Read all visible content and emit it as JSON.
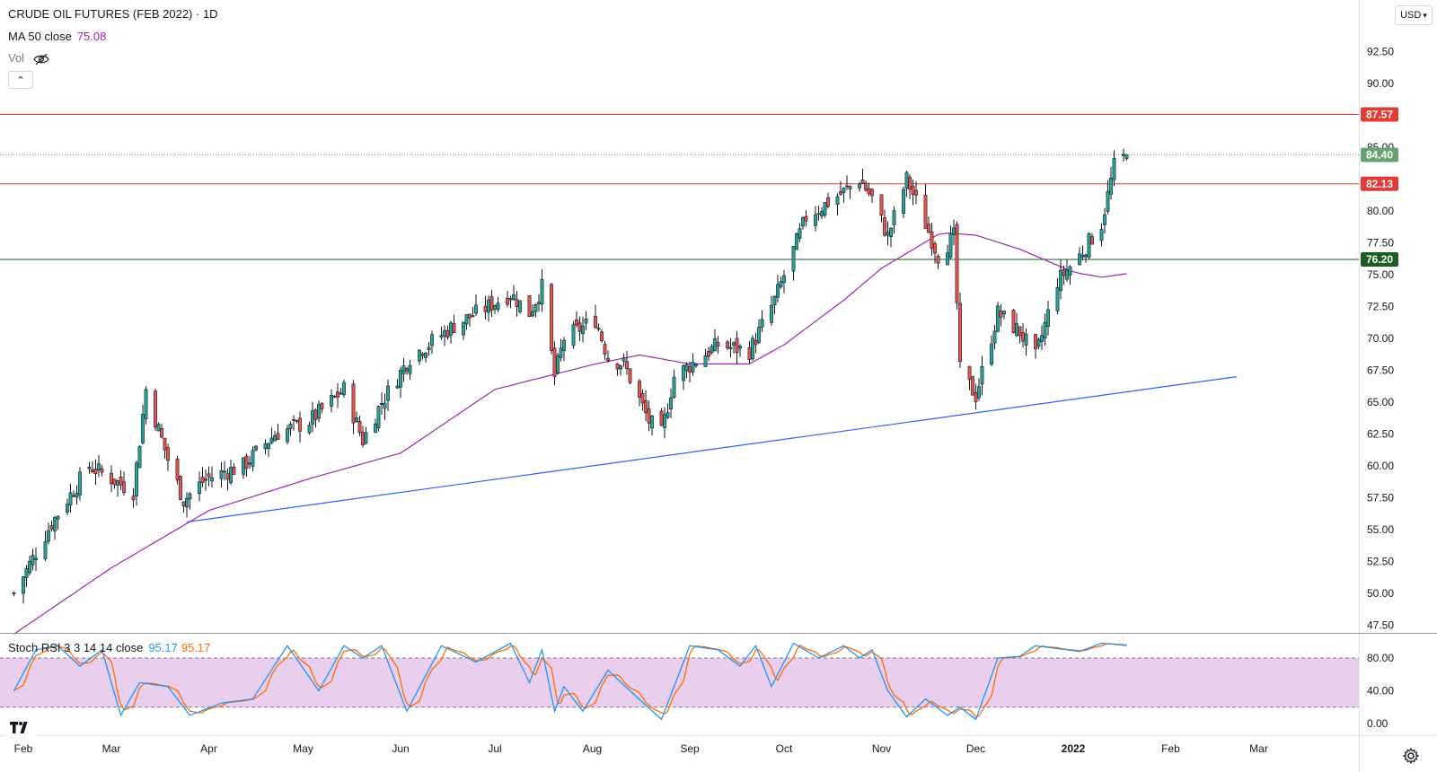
{
  "header": {
    "title": "CRUDE OIL FUTURES (FEB 2022) · 1D",
    "ma_label": "MA 50 close",
    "ma_value": "75.08",
    "vol_label": "Vol",
    "collapse_symbol": "⌃",
    "currency": "USD"
  },
  "stoch_legend": {
    "label": "Stoch RSI 3 3 14 14 close",
    "k_value": "95.17",
    "d_value": "95.17"
  },
  "colors": {
    "bull": "#26a69a",
    "bear": "#ef5350",
    "ma": "#9c27b0",
    "trend": "#2962ff",
    "resistance": "#e53935",
    "support": "#1b5e20",
    "last": "#4caf50",
    "stoch_k": "#2196f3",
    "stoch_d": "#ff6d00",
    "band": "#e1bee7"
  },
  "chart_data": [
    {
      "type": "candlestick",
      "title": "CRUDE OIL FUTURES (FEB 2022) · 1D",
      "ylim": [
        47.5,
        95
      ],
      "y_ticks": [
        "92.50",
        "90.00",
        "85.00",
        "80.00",
        "77.50",
        "75.00",
        "72.50",
        "70.00",
        "67.50",
        "65.00",
        "62.50",
        "60.00",
        "57.50",
        "55.00",
        "52.50",
        "50.00",
        "47.50"
      ],
      "x_ticks": [
        "Feb",
        "Mar",
        "Apr",
        "May",
        "Jun",
        "Jul",
        "Aug",
        "Sep",
        "Oct",
        "Nov",
        "Dec",
        "2022",
        "Feb",
        "Mar"
      ],
      "last_price": "84.40",
      "horizontal_levels": [
        {
          "price": 87.57,
          "label": "87.57",
          "kind": "resistance"
        },
        {
          "price": 82.13,
          "label": "82.13",
          "kind": "resistance"
        },
        {
          "price": 76.2,
          "label": "76.20",
          "kind": "support"
        }
      ],
      "trendline": {
        "from": [
          "Mar 25 2021",
          55.6
        ],
        "to": [
          "Feb 22 2022",
          67.0
        ]
      },
      "close_anchors": [
        [
          "2021-01-29",
          50.0
        ],
        [
          "2021-02-10",
          55.5
        ],
        [
          "2021-02-22",
          60.0
        ],
        [
          "2021-03-08",
          58.0
        ],
        [
          "2021-03-12",
          66.0
        ],
        [
          "2021-03-19",
          60.5
        ],
        [
          "2021-03-24",
          57.3
        ],
        [
          "2021-03-31",
          59.0
        ],
        [
          "2021-04-12",
          60.0
        ],
        [
          "2021-04-22",
          62.5
        ],
        [
          "2021-05-03",
          63.5
        ],
        [
          "2021-05-14",
          66.0
        ],
        [
          "2021-05-20",
          62.0
        ],
        [
          "2021-05-26",
          65.0
        ],
        [
          "2021-06-04",
          68.5
        ],
        [
          "2021-06-18",
          71.0
        ],
        [
          "2021-07-06",
          73.5
        ],
        [
          "2021-07-12",
          72.0
        ],
        [
          "2021-07-16",
          74.0
        ],
        [
          "2021-07-20",
          67.0
        ],
        [
          "2021-07-23",
          70.0
        ],
        [
          "2021-08-02",
          71.5
        ],
        [
          "2021-08-06",
          68.5
        ],
        [
          "2021-08-11",
          68.0
        ],
        [
          "2021-08-19",
          63.5
        ],
        [
          "2021-08-23",
          62.5
        ],
        [
          "2021-08-27",
          67.0
        ],
        [
          "2021-09-10",
          69.5
        ],
        [
          "2021-09-20",
          69.0
        ],
        [
          "2021-09-28",
          73.0
        ],
        [
          "2021-10-08",
          79.5
        ],
        [
          "2021-10-20",
          81.5
        ],
        [
          "2021-10-25",
          82.5
        ],
        [
          "2021-10-29",
          81.0
        ],
        [
          "2021-11-03",
          78.0
        ],
        [
          "2021-11-09",
          82.5
        ],
        [
          "2021-11-15",
          79.0
        ],
        [
          "2021-11-19",
          76.5
        ],
        [
          "2021-11-24",
          78.0
        ],
        [
          "2021-11-26",
          67.5
        ],
        [
          "2021-12-01",
          65.5
        ],
        [
          "2021-12-08",
          72.0
        ],
        [
          "2021-12-15",
          70.5
        ],
        [
          "2021-12-20",
          68.5
        ],
        [
          "2021-12-27",
          74.5
        ],
        [
          "2022-01-03",
          76.5
        ],
        [
          "2022-01-10",
          79.0
        ],
        [
          "2022-01-14",
          83.5
        ],
        [
          "2022-01-18",
          84.4
        ]
      ],
      "moving_average": {
        "name": "MA 50 close",
        "points": [
          [
            "2021-01-29",
            46.8
          ],
          [
            "2021-03-01",
            52.0
          ],
          [
            "2021-04-01",
            56.5
          ],
          [
            "2021-05-03",
            59.0
          ],
          [
            "2021-06-01",
            61.0
          ],
          [
            "2021-07-01",
            66.0
          ],
          [
            "2021-08-02",
            68.0
          ],
          [
            "2021-08-16",
            68.7
          ],
          [
            "2021-09-01",
            68.0
          ],
          [
            "2021-09-20",
            68.0
          ],
          [
            "2021-10-01",
            69.5
          ],
          [
            "2021-10-20",
            73.0
          ],
          [
            "2021-11-01",
            75.5
          ],
          [
            "2021-11-20",
            78.3
          ],
          [
            "2021-12-01",
            78.1
          ],
          [
            "2021-12-15",
            77.0
          ],
          [
            "2022-01-01",
            75.2
          ],
          [
            "2022-01-10",
            74.8
          ],
          [
            "2022-01-18",
            75.08
          ]
        ]
      }
    },
    {
      "type": "line",
      "title": "Stoch RSI 3 3 14 14 close",
      "ylim": [
        0,
        100
      ],
      "y_ticks": [
        "80.00",
        "40.00",
        "0.00"
      ],
      "bands": [
        20,
        80
      ],
      "series": [
        {
          "name": "K",
          "last": 95.17
        },
        {
          "name": "D",
          "last": 95.17
        }
      ],
      "anchors": [
        [
          "2021-01-29",
          40
        ],
        [
          "2021-02-05",
          90
        ],
        [
          "2021-02-12",
          95
        ],
        [
          "2021-02-19",
          70
        ],
        [
          "2021-02-26",
          90
        ],
        [
          "2021-03-04",
          10
        ],
        [
          "2021-03-10",
          50
        ],
        [
          "2021-03-19",
          45
        ],
        [
          "2021-03-26",
          10
        ],
        [
          "2021-04-05",
          25
        ],
        [
          "2021-04-15",
          30
        ],
        [
          "2021-04-26",
          95
        ],
        [
          "2021-05-06",
          40
        ],
        [
          "2021-05-14",
          95
        ],
        [
          "2021-05-20",
          80
        ],
        [
          "2021-05-26",
          95
        ],
        [
          "2021-06-03",
          15
        ],
        [
          "2021-06-14",
          95
        ],
        [
          "2021-06-25",
          75
        ],
        [
          "2021-07-06",
          98
        ],
        [
          "2021-07-12",
          50
        ],
        [
          "2021-07-16",
          90
        ],
        [
          "2021-07-20",
          15
        ],
        [
          "2021-07-23",
          45
        ],
        [
          "2021-07-29",
          15
        ],
        [
          "2021-08-06",
          65
        ],
        [
          "2021-08-13",
          40
        ],
        [
          "2021-08-23",
          5
        ],
        [
          "2021-09-01",
          95
        ],
        [
          "2021-09-10",
          90
        ],
        [
          "2021-09-17",
          70
        ],
        [
          "2021-09-22",
          95
        ],
        [
          "2021-09-27",
          45
        ],
        [
          "2021-10-04",
          98
        ],
        [
          "2021-10-12",
          80
        ],
        [
          "2021-10-20",
          95
        ],
        [
          "2021-10-25",
          80
        ],
        [
          "2021-10-29",
          90
        ],
        [
          "2021-11-03",
          40
        ],
        [
          "2021-11-09",
          8
        ],
        [
          "2021-11-15",
          30
        ],
        [
          "2021-11-22",
          10
        ],
        [
          "2021-11-26",
          20
        ],
        [
          "2021-12-01",
          5
        ],
        [
          "2021-12-08",
          80
        ],
        [
          "2021-12-15",
          82
        ],
        [
          "2021-12-20",
          95
        ],
        [
          "2022-01-03",
          88
        ],
        [
          "2022-01-10",
          98
        ],
        [
          "2022-01-18",
          95.17
        ]
      ]
    }
  ]
}
